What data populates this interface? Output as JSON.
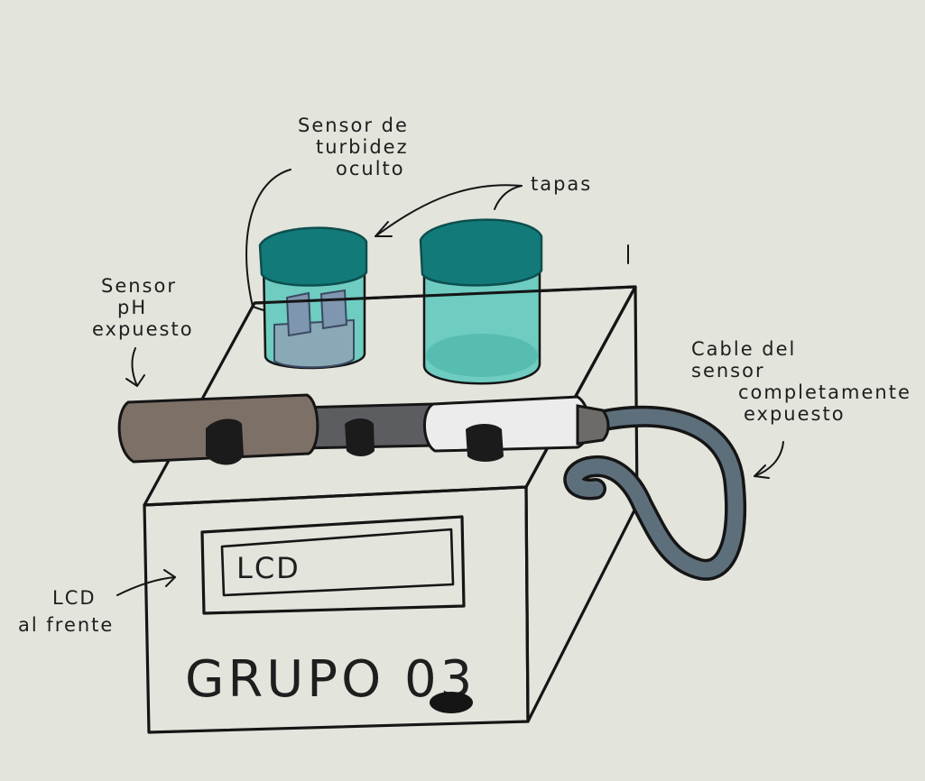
{
  "labels": {
    "turbidity_sensor": [
      "Sensor de",
      "turbidez",
      "oculto"
    ],
    "lids": "tapas",
    "ph_sensor": [
      "Sensor",
      "pH",
      "expuesto"
    ],
    "cable": [
      "Cable del",
      "sensor",
      "completamente",
      "expuesto"
    ],
    "lcd_note": [
      "LCD",
      "al frente"
    ],
    "lcd_screen": "LCD",
    "group_name": "GRUPO 03"
  },
  "colors": {
    "background": "#e3e4dc",
    "ink": "#151515",
    "lid_teal": "#127b79",
    "jar_fill": "#59c8bc",
    "probe_brown": "#7d7067",
    "probe_dark": "#5c5d61",
    "cable_gray": "#5e6f7c",
    "button_black": "#1b1b1b"
  },
  "icons": [
    "down-arrow-icon"
  ]
}
